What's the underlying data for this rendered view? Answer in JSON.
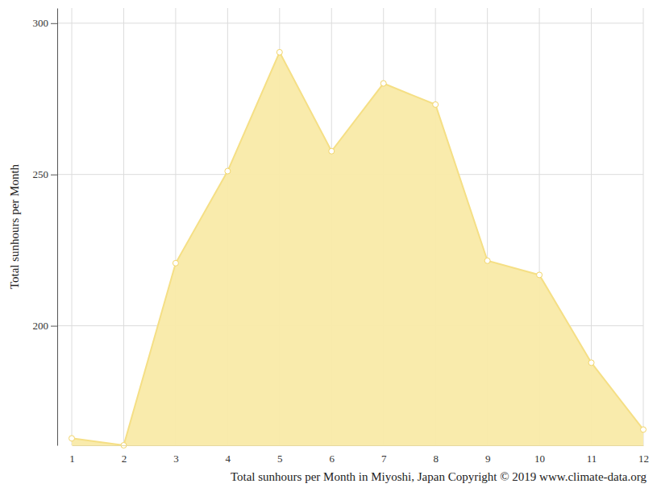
{
  "chart_data": {
    "type": "area",
    "title": "Total sunhours per Month in Miyoshi, Japan Copyright © 2019 www.climate-data.org",
    "y_label": "Total sunhours per Month",
    "x": [
      1,
      2,
      3,
      4,
      5,
      6,
      7,
      8,
      9,
      10,
      11,
      12
    ],
    "values": [
      162.8,
      160.5,
      220.7,
      251.1,
      290.4,
      257.7,
      280.1,
      273.1,
      221.5,
      216.8,
      187.8,
      165.7
    ],
    "xlim": [
      1,
      12
    ],
    "xticks": [
      1,
      2,
      3,
      4,
      5,
      6,
      7,
      8,
      9,
      10,
      11,
      12
    ],
    "ylim": [
      160.5,
      305
    ],
    "yticks": [
      200,
      250,
      300
    ],
    "grid": true,
    "color": "#f9eaa8",
    "marker": "circle"
  }
}
